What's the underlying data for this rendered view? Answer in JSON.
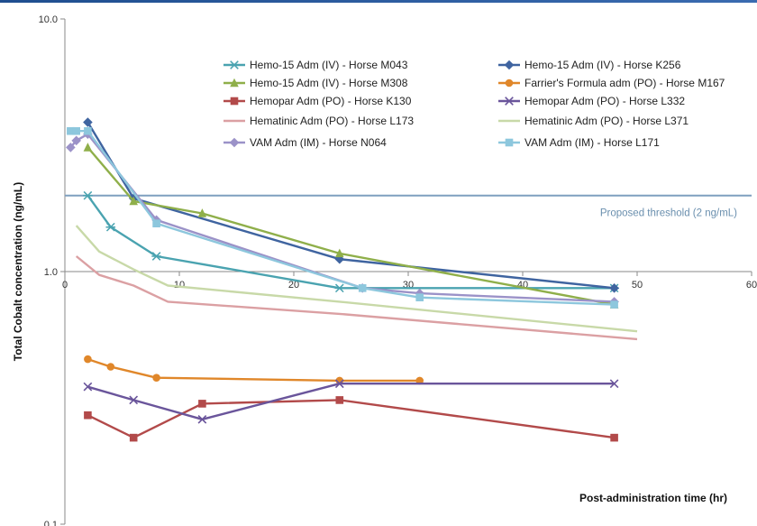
{
  "chart_data": {
    "type": "line",
    "title": "",
    "xlabel": "Post-administration time (hr)",
    "ylabel": "Total Cobalt concentration (ng/mL)",
    "xlim": [
      0,
      60
    ],
    "ylim": [
      0.1,
      10
    ],
    "yscale": "log",
    "xticks": [
      "0",
      "10",
      "20",
      "30",
      "40",
      "50",
      "60"
    ],
    "yticks": [
      "10.0",
      "1.0",
      "0.1"
    ],
    "grid": false,
    "legend_position": "top-right",
    "threshold": {
      "value": 2,
      "label": "Proposed threshold  (2 ng/mL)",
      "color": "#7f9fbf"
    },
    "series": [
      {
        "name": "Hemo-15 Adm (IV) - Horse M043",
        "color": "#4aa3b0",
        "marker": "star",
        "x": [
          2,
          4,
          8,
          24,
          48
        ],
        "y": [
          2.0,
          1.5,
          1.15,
          0.86,
          0.86
        ]
      },
      {
        "name": "Hemo-15 Adm (IV) - Horse K256",
        "color": "#3f64a0",
        "marker": "diamond",
        "x": [
          2,
          6,
          24,
          48
        ],
        "y": [
          3.9,
          1.95,
          1.12,
          0.86
        ]
      },
      {
        "name": "Hemo-15 Adm (IV) - Horse M308",
        "color": "#8faf4a",
        "marker": "triangle",
        "x": [
          2,
          6,
          12,
          24,
          48
        ],
        "y": [
          3.1,
          1.9,
          1.7,
          1.18,
          0.74
        ]
      },
      {
        "name": "Farrier's Formula adm (PO) - Horse M167",
        "color": "#e0872a",
        "marker": "circle",
        "x": [
          2,
          4,
          8,
          24,
          31
        ],
        "y": [
          0.45,
          0.42,
          0.38,
          0.37,
          0.37
        ]
      },
      {
        "name": "Hemopar Adm (PO) - Horse K130",
        "color": "#b24a4a",
        "marker": "square",
        "x": [
          2,
          6,
          12,
          24,
          48
        ],
        "y": [
          0.27,
          0.22,
          0.3,
          0.31,
          0.22
        ]
      },
      {
        "name": "Hemopar Adm (PO) - Horse L332",
        "color": "#6a559b",
        "marker": "x",
        "x": [
          2,
          6,
          12,
          24,
          48
        ],
        "y": [
          0.35,
          0.31,
          0.26,
          0.36,
          0.36
        ]
      },
      {
        "name": "Hematinic Adm (PO) - Horse L173",
        "color": "#dba0a3",
        "marker": "none",
        "x": [
          1,
          3,
          6,
          9,
          24,
          50
        ],
        "y": [
          1.15,
          0.97,
          0.88,
          0.76,
          0.68,
          0.54
        ]
      },
      {
        "name": "Hematinic Adm (PO) - Horse L371",
        "color": "#c8d9a8",
        "marker": "none",
        "x": [
          1,
          3,
          6,
          9,
          24,
          50
        ],
        "y": [
          1.52,
          1.2,
          1.02,
          0.88,
          0.76,
          0.58
        ]
      },
      {
        "name": "VAM Adm (IM) - Horse N064",
        "color": "#9b92c8",
        "marker": "diamond",
        "x": [
          0.5,
          1,
          2,
          8,
          26,
          31,
          48
        ],
        "y": [
          3.1,
          3.3,
          3.5,
          1.6,
          0.86,
          0.82,
          0.76
        ]
      },
      {
        "name": "VAM Adm (IM) - Horse L171",
        "color": "#8dc7dd",
        "marker": "square",
        "x": [
          0.5,
          1,
          2,
          8,
          26,
          31,
          48
        ],
        "y": [
          3.6,
          3.6,
          3.6,
          1.55,
          0.86,
          0.79,
          0.74
        ]
      }
    ]
  }
}
